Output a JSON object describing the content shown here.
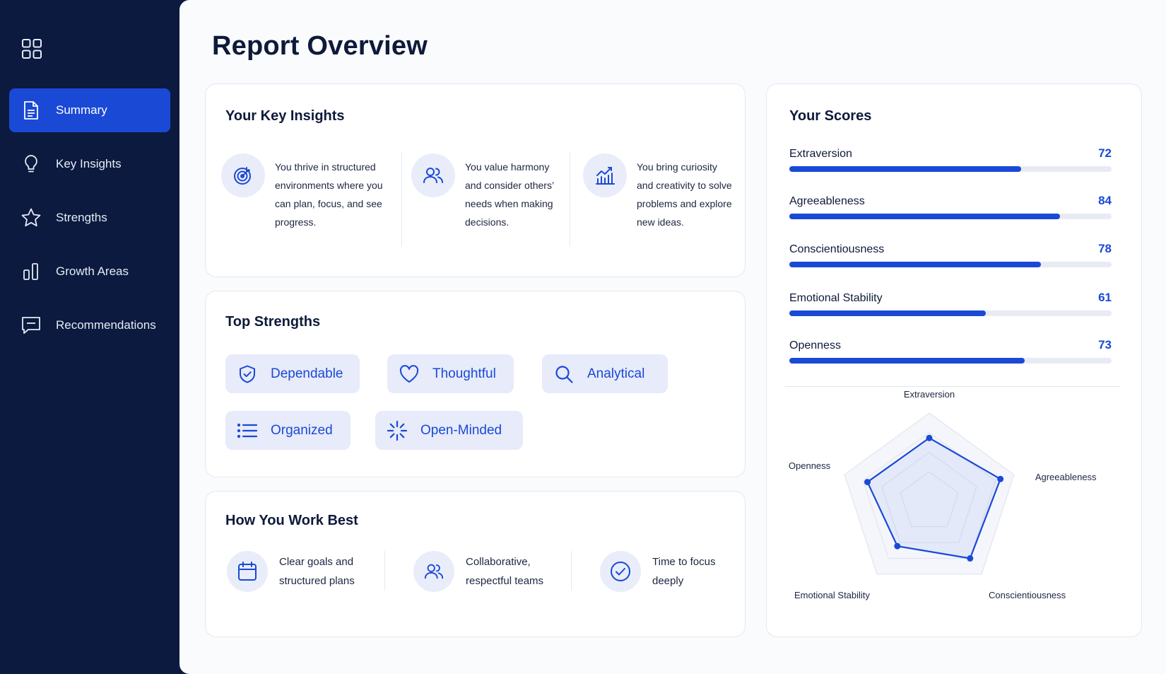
{
  "sidebar": {
    "items": [
      {
        "label": "Summary",
        "icon": "document-icon",
        "active": true
      },
      {
        "label": "Key Insights",
        "icon": "lightbulb-icon",
        "active": false
      },
      {
        "label": "Strengths",
        "icon": "star-icon",
        "active": false
      },
      {
        "label": "Growth Areas",
        "icon": "bar-chart-icon",
        "active": false
      },
      {
        "label": "Recommendations",
        "icon": "message-icon",
        "active": false
      }
    ]
  },
  "page": {
    "title": "Report Overview"
  },
  "insights": {
    "title": "Your Key Insights",
    "items": [
      {
        "icon": "target-icon",
        "text": "You thrive in structured environments where you can plan, focus, and see progress."
      },
      {
        "icon": "users-icon",
        "text": "You value harmony and consider others’ needs when making decisions."
      },
      {
        "icon": "growth-chart-icon",
        "text": "You bring curiosity and creativity to solve problems and explore new ideas."
      }
    ]
  },
  "strengths": {
    "title": "Top Strengths",
    "chips": [
      {
        "label": "Dependable",
        "icon": "shield-check-icon"
      },
      {
        "label": "Thoughtful",
        "icon": "heart-icon"
      },
      {
        "label": "Analytical",
        "icon": "search-icon"
      },
      {
        "label": "Organized",
        "icon": "list-icon"
      },
      {
        "label": "Open-Minded",
        "icon": "sparkle-icon"
      }
    ]
  },
  "work_best": {
    "title": "How You Work Best",
    "items": [
      {
        "icon": "calendar-icon",
        "line1": "Clear goals and",
        "line2": "structured plans"
      },
      {
        "icon": "users-icon",
        "line1": "Collaborative,",
        "line2": "respectful teams"
      },
      {
        "icon": "check-circle-icon",
        "line1": "Time to focus",
        "line2": "deeply"
      }
    ]
  },
  "scores": {
    "title": "Your Scores",
    "max": 100,
    "items": [
      {
        "label": "Extraversion",
        "value": 72
      },
      {
        "label": "Agreeableness",
        "value": 84
      },
      {
        "label": "Conscientiousness",
        "value": 78
      },
      {
        "label": "Emotional Stability",
        "value": 61
      },
      {
        "label": "Openness",
        "value": 73
      }
    ],
    "radar_labels": [
      "Extraversion",
      "Agreeableness",
      "Conscientiousness",
      "Emotional Stability",
      "Openness"
    ]
  },
  "colors": {
    "accent": "#1a49d6",
    "sidebar": "#0b1a3e",
    "chip_bg": "#e7ebfa"
  }
}
